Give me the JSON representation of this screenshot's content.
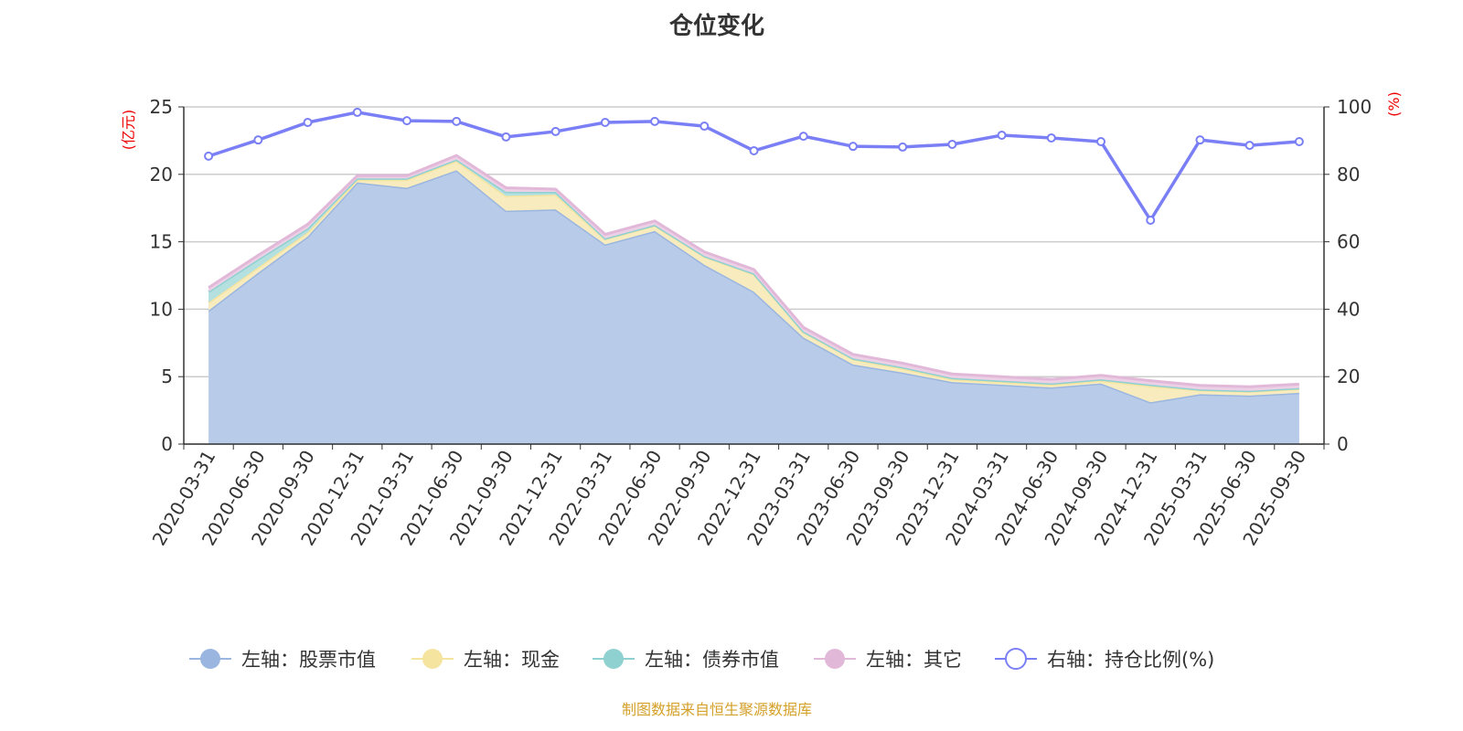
{
  "chart_data": {
    "type": "area",
    "title": "仓位变化",
    "ylabel": "(亿元)",
    "y2label": "(%)",
    "ylim": [
      0,
      25
    ],
    "y2lim": [
      0,
      100
    ],
    "yticks": [
      0,
      5,
      10,
      15,
      20,
      25
    ],
    "y2ticks": [
      0,
      20,
      40,
      60,
      80,
      100
    ],
    "grid": true,
    "legend_position": "bottom",
    "categories": [
      "2020-03-31",
      "2020-06-30",
      "2020-09-30",
      "2020-12-31",
      "2021-03-31",
      "2021-06-30",
      "2021-09-30",
      "2021-12-31",
      "2022-03-31",
      "2022-06-30",
      "2022-09-30",
      "2022-12-31",
      "2023-03-31",
      "2023-06-30",
      "2023-09-30",
      "2023-12-31",
      "2024-03-31",
      "2024-06-30",
      "2024-09-30",
      "2024-12-31",
      "2025-03-31",
      "2025-06-30",
      "2025-09-30"
    ],
    "series": [
      {
        "name": "左轴：股票市值",
        "axis": "left",
        "stacked": true,
        "color": "#9ab6e0",
        "values": [
          9.9,
          12.7,
          15.4,
          19.4,
          19.0,
          20.3,
          17.3,
          17.4,
          14.8,
          15.8,
          13.3,
          11.3,
          7.9,
          5.9,
          5.3,
          4.6,
          4.4,
          4.2,
          4.5,
          3.1,
          3.7,
          3.6,
          3.8
        ]
      },
      {
        "name": "左轴：现金",
        "axis": "left",
        "stacked": true,
        "color": "#f5e4a0",
        "values": [
          0.6,
          0.4,
          0.3,
          0.2,
          0.6,
          0.7,
          1.1,
          1.1,
          0.4,
          0.4,
          0.6,
          1.3,
          0.4,
          0.4,
          0.3,
          0.2,
          0.2,
          0.2,
          0.2,
          1.2,
          0.3,
          0.3,
          0.3
        ]
      },
      {
        "name": "左轴：债券市值",
        "axis": "left",
        "stacked": true,
        "color": "#8fd1d1",
        "values": [
          0.8,
          0.6,
          0.3,
          0.1,
          0.1,
          0.1,
          0.3,
          0.2,
          0.05,
          0.05,
          0.05,
          0.05,
          0.05,
          0.05,
          0.1,
          0.1,
          0.1,
          0.1,
          0.1,
          0.1,
          0.05,
          0.05,
          0.05
        ]
      },
      {
        "name": "左轴：其它",
        "axis": "left",
        "stacked": true,
        "color": "#e2b8d9",
        "values": [
          0.3,
          0.3,
          0.3,
          0.2,
          0.2,
          0.3,
          0.3,
          0.2,
          0.3,
          0.3,
          0.3,
          0.3,
          0.3,
          0.3,
          0.3,
          0.3,
          0.3,
          0.3,
          0.3,
          0.3,
          0.3,
          0.3,
          0.3
        ]
      },
      {
        "name": "右轴：持仓比例(%)",
        "axis": "right",
        "type": "line",
        "color": "#7a7ff5",
        "values": [
          85.4,
          90.2,
          95.4,
          98.4,
          95.9,
          95.7,
          91.1,
          92.7,
          95.4,
          95.7,
          94.3,
          87.0,
          91.3,
          88.3,
          88.1,
          88.9,
          91.6,
          90.8,
          89.7,
          66.4,
          90.2,
          88.6,
          89.7
        ]
      }
    ]
  },
  "source": "制图数据来自恒生聚源数据库"
}
